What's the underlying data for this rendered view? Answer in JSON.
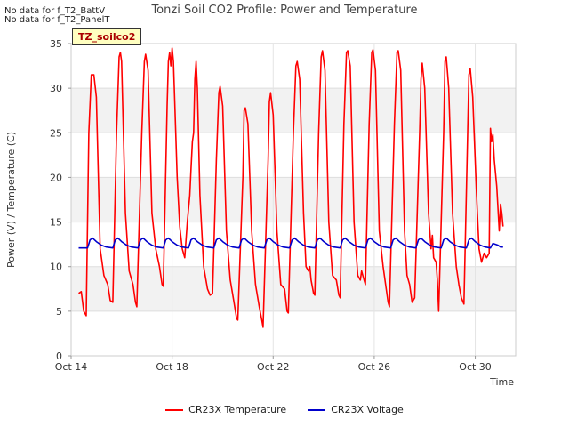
{
  "nodata": [
    "No data for f_T2_BattV",
    "No data for f_T2_PanelT"
  ],
  "tag_label": "TZ_soilco2",
  "chart_data": {
    "type": "line",
    "title": "Tonzi Soil CO2 Profile: Power and Temperature",
    "xlabel": "Time",
    "ylabel": "Power (V) / Temperature (C)",
    "xlim": [
      14,
      31.6
    ],
    "ylim": [
      0,
      35
    ],
    "x_ticks": [
      14,
      18,
      22,
      26,
      30
    ],
    "x_tick_labels": [
      "Oct 14",
      "Oct 18",
      "Oct 22",
      "Oct 26",
      "Oct 30"
    ],
    "y_ticks": [
      0,
      5,
      10,
      15,
      20,
      25,
      30,
      35
    ],
    "grid": true,
    "legend_position": "bottom",
    "series": [
      {
        "name": "CR23X Temperature",
        "color": "#ff0000",
        "points": [
          [
            14.3,
            7.0
          ],
          [
            14.4,
            7.2
          ],
          [
            14.5,
            5.0
          ],
          [
            14.6,
            4.5
          ],
          [
            14.7,
            25.0
          ],
          [
            14.8,
            31.5
          ],
          [
            14.9,
            31.5
          ],
          [
            15.0,
            29.0
          ],
          [
            15.15,
            12.0
          ],
          [
            15.3,
            9.0
          ],
          [
            15.45,
            8.0
          ],
          [
            15.55,
            6.2
          ],
          [
            15.65,
            6.0
          ],
          [
            15.8,
            25.0
          ],
          [
            15.9,
            33.5
          ],
          [
            15.95,
            34.0
          ],
          [
            16.0,
            33.0
          ],
          [
            16.15,
            16.0
          ],
          [
            16.3,
            9.5
          ],
          [
            16.45,
            8.0
          ],
          [
            16.55,
            6.0
          ],
          [
            16.6,
            5.5
          ],
          [
            16.8,
            25.0
          ],
          [
            16.9,
            33.0
          ],
          [
            16.95,
            33.8
          ],
          [
            17.05,
            32.0
          ],
          [
            17.2,
            16.0
          ],
          [
            17.35,
            12.0
          ],
          [
            17.5,
            10.0
          ],
          [
            17.6,
            8.0
          ],
          [
            17.65,
            7.8
          ],
          [
            17.8,
            28.0
          ],
          [
            17.85,
            33.0
          ],
          [
            17.9,
            34.0
          ],
          [
            17.95,
            32.5
          ],
          [
            18.0,
            34.5
          ],
          [
            18.05,
            33.0
          ],
          [
            18.2,
            20.0
          ],
          [
            18.3,
            14.5
          ],
          [
            18.4,
            12.0
          ],
          [
            18.5,
            11.0
          ],
          [
            18.6,
            15.0
          ],
          [
            18.7,
            18.0
          ],
          [
            18.75,
            21.0
          ],
          [
            18.8,
            24.0
          ],
          [
            18.85,
            25.0
          ],
          [
            18.9,
            31.0
          ],
          [
            18.95,
            33.0
          ],
          [
            19.0,
            30.0
          ],
          [
            19.1,
            18.0
          ],
          [
            19.25,
            10.0
          ],
          [
            19.4,
            7.5
          ],
          [
            19.5,
            6.8
          ],
          [
            19.6,
            7.0
          ],
          [
            19.75,
            22.0
          ],
          [
            19.85,
            29.5
          ],
          [
            19.9,
            30.2
          ],
          [
            20.0,
            28.0
          ],
          [
            20.15,
            14.0
          ],
          [
            20.3,
            8.5
          ],
          [
            20.45,
            6.0
          ],
          [
            20.55,
            4.2
          ],
          [
            20.6,
            4.0
          ],
          [
            20.8,
            20.0
          ],
          [
            20.85,
            27.5
          ],
          [
            20.9,
            27.8
          ],
          [
            21.0,
            26.0
          ],
          [
            21.15,
            14.0
          ],
          [
            21.3,
            8.0
          ],
          [
            21.45,
            5.5
          ],
          [
            21.55,
            4.0
          ],
          [
            21.6,
            3.2
          ],
          [
            21.8,
            22.0
          ],
          [
            21.85,
            28.5
          ],
          [
            21.9,
            29.5
          ],
          [
            22.0,
            27.0
          ],
          [
            22.15,
            14.0
          ],
          [
            22.3,
            8.0
          ],
          [
            22.45,
            7.5
          ],
          [
            22.55,
            5.0
          ],
          [
            22.6,
            4.8
          ],
          [
            22.8,
            25.0
          ],
          [
            22.9,
            32.5
          ],
          [
            22.95,
            33.0
          ],
          [
            23.05,
            31.0
          ],
          [
            23.2,
            16.0
          ],
          [
            23.3,
            10.0
          ],
          [
            23.4,
            9.5
          ],
          [
            23.45,
            10.0
          ],
          [
            23.5,
            8.5
          ],
          [
            23.6,
            7.0
          ],
          [
            23.65,
            6.8
          ],
          [
            23.8,
            25.0
          ],
          [
            23.9,
            33.5
          ],
          [
            23.95,
            34.2
          ],
          [
            24.05,
            32.0
          ],
          [
            24.2,
            15.0
          ],
          [
            24.35,
            9.0
          ],
          [
            24.5,
            8.5
          ],
          [
            24.6,
            6.8
          ],
          [
            24.65,
            6.5
          ],
          [
            24.8,
            26.0
          ],
          [
            24.9,
            34.0
          ],
          [
            24.95,
            34.2
          ],
          [
            25.05,
            32.5
          ],
          [
            25.2,
            15.0
          ],
          [
            25.35,
            9.0
          ],
          [
            25.45,
            8.5
          ],
          [
            25.5,
            9.5
          ],
          [
            25.6,
            8.5
          ],
          [
            25.65,
            8.0
          ],
          [
            25.8,
            26.0
          ],
          [
            25.9,
            34.0
          ],
          [
            25.95,
            34.3
          ],
          [
            26.05,
            32.0
          ],
          [
            26.2,
            14.0
          ],
          [
            26.35,
            10.0
          ],
          [
            26.45,
            8.0
          ],
          [
            26.55,
            6.0
          ],
          [
            26.6,
            5.5
          ],
          [
            26.8,
            26.0
          ],
          [
            26.9,
            34.0
          ],
          [
            26.95,
            34.2
          ],
          [
            27.05,
            32.0
          ],
          [
            27.2,
            14.0
          ],
          [
            27.3,
            9.0
          ],
          [
            27.4,
            8.0
          ],
          [
            27.5,
            6.0
          ],
          [
            27.6,
            6.5
          ],
          [
            27.8,
            25.0
          ],
          [
            27.85,
            31.0
          ],
          [
            27.9,
            32.8
          ],
          [
            28.0,
            30.0
          ],
          [
            28.15,
            16.0
          ],
          [
            28.25,
            12.0
          ],
          [
            28.3,
            13.5
          ],
          [
            28.35,
            11.0
          ],
          [
            28.45,
            10.5
          ],
          [
            28.5,
            8.5
          ],
          [
            28.55,
            5.0
          ],
          [
            28.75,
            25.0
          ],
          [
            28.8,
            33.0
          ],
          [
            28.85,
            33.5
          ],
          [
            28.95,
            30.0
          ],
          [
            29.1,
            16.0
          ],
          [
            29.25,
            10.0
          ],
          [
            29.35,
            8.0
          ],
          [
            29.45,
            6.5
          ],
          [
            29.55,
            5.8
          ],
          [
            29.7,
            25.0
          ],
          [
            29.75,
            31.5
          ],
          [
            29.8,
            32.2
          ],
          [
            29.9,
            29.0
          ],
          [
            30.05,
            18.0
          ],
          [
            30.15,
            12.0
          ],
          [
            30.25,
            10.5
          ],
          [
            30.35,
            11.5
          ],
          [
            30.45,
            11.0
          ],
          [
            30.55,
            11.5
          ],
          [
            30.6,
            25.5
          ],
          [
            30.65,
            24.0
          ],
          [
            30.7,
            24.8
          ],
          [
            30.75,
            22.0
          ],
          [
            30.85,
            19.0
          ],
          [
            30.9,
            16.5
          ],
          [
            30.95,
            14.0
          ],
          [
            31.0,
            17.0
          ],
          [
            31.05,
            16.0
          ],
          [
            31.1,
            14.5
          ]
        ]
      },
      {
        "name": "CR23X Voltage",
        "color": "#0000cc",
        "points": [
          [
            14.3,
            12.1
          ],
          [
            14.65,
            12.1
          ],
          [
            14.75,
            13.0
          ],
          [
            14.85,
            13.2
          ],
          [
            15.0,
            12.8
          ],
          [
            15.2,
            12.4
          ],
          [
            15.4,
            12.2
          ],
          [
            15.65,
            12.1
          ],
          [
            15.75,
            13.0
          ],
          [
            15.85,
            13.2
          ],
          [
            16.0,
            12.8
          ],
          [
            16.2,
            12.4
          ],
          [
            16.4,
            12.2
          ],
          [
            16.65,
            12.1
          ],
          [
            16.75,
            13.0
          ],
          [
            16.85,
            13.2
          ],
          [
            17.0,
            12.8
          ],
          [
            17.2,
            12.4
          ],
          [
            17.4,
            12.2
          ],
          [
            17.65,
            12.1
          ],
          [
            17.75,
            13.0
          ],
          [
            17.85,
            13.2
          ],
          [
            18.0,
            12.8
          ],
          [
            18.2,
            12.4
          ],
          [
            18.4,
            12.2
          ],
          [
            18.65,
            12.1
          ],
          [
            18.75,
            13.0
          ],
          [
            18.85,
            13.2
          ],
          [
            19.0,
            12.8
          ],
          [
            19.2,
            12.4
          ],
          [
            19.4,
            12.2
          ],
          [
            19.65,
            12.1
          ],
          [
            19.75,
            13.0
          ],
          [
            19.85,
            13.2
          ],
          [
            20.0,
            12.8
          ],
          [
            20.2,
            12.4
          ],
          [
            20.4,
            12.2
          ],
          [
            20.65,
            12.1
          ],
          [
            20.75,
            13.0
          ],
          [
            20.85,
            13.2
          ],
          [
            21.0,
            12.8
          ],
          [
            21.2,
            12.4
          ],
          [
            21.4,
            12.2
          ],
          [
            21.65,
            12.1
          ],
          [
            21.75,
            13.0
          ],
          [
            21.85,
            13.2
          ],
          [
            22.0,
            12.8
          ],
          [
            22.2,
            12.4
          ],
          [
            22.4,
            12.2
          ],
          [
            22.65,
            12.1
          ],
          [
            22.75,
            13.0
          ],
          [
            22.85,
            13.2
          ],
          [
            23.0,
            12.8
          ],
          [
            23.2,
            12.4
          ],
          [
            23.4,
            12.2
          ],
          [
            23.65,
            12.1
          ],
          [
            23.75,
            13.0
          ],
          [
            23.85,
            13.2
          ],
          [
            24.0,
            12.8
          ],
          [
            24.2,
            12.4
          ],
          [
            24.4,
            12.2
          ],
          [
            24.65,
            12.1
          ],
          [
            24.75,
            13.0
          ],
          [
            24.85,
            13.2
          ],
          [
            25.0,
            12.8
          ],
          [
            25.2,
            12.4
          ],
          [
            25.4,
            12.2
          ],
          [
            25.65,
            12.1
          ],
          [
            25.75,
            13.0
          ],
          [
            25.85,
            13.2
          ],
          [
            26.0,
            12.8
          ],
          [
            26.2,
            12.4
          ],
          [
            26.4,
            12.2
          ],
          [
            26.65,
            12.1
          ],
          [
            26.75,
            13.0
          ],
          [
            26.85,
            13.2
          ],
          [
            27.0,
            12.8
          ],
          [
            27.2,
            12.4
          ],
          [
            27.4,
            12.2
          ],
          [
            27.65,
            12.1
          ],
          [
            27.75,
            13.0
          ],
          [
            27.85,
            13.2
          ],
          [
            28.0,
            12.8
          ],
          [
            28.2,
            12.4
          ],
          [
            28.4,
            12.2
          ],
          [
            28.65,
            12.1
          ],
          [
            28.75,
            13.0
          ],
          [
            28.85,
            13.2
          ],
          [
            29.0,
            12.8
          ],
          [
            29.2,
            12.4
          ],
          [
            29.4,
            12.2
          ],
          [
            29.65,
            12.1
          ],
          [
            29.75,
            13.0
          ],
          [
            29.85,
            13.2
          ],
          [
            30.0,
            12.8
          ],
          [
            30.2,
            12.4
          ],
          [
            30.4,
            12.2
          ],
          [
            30.6,
            12.1
          ],
          [
            30.7,
            12.6
          ],
          [
            30.8,
            12.5
          ],
          [
            30.9,
            12.4
          ],
          [
            31.0,
            12.2
          ],
          [
            31.1,
            12.2
          ]
        ]
      }
    ]
  }
}
